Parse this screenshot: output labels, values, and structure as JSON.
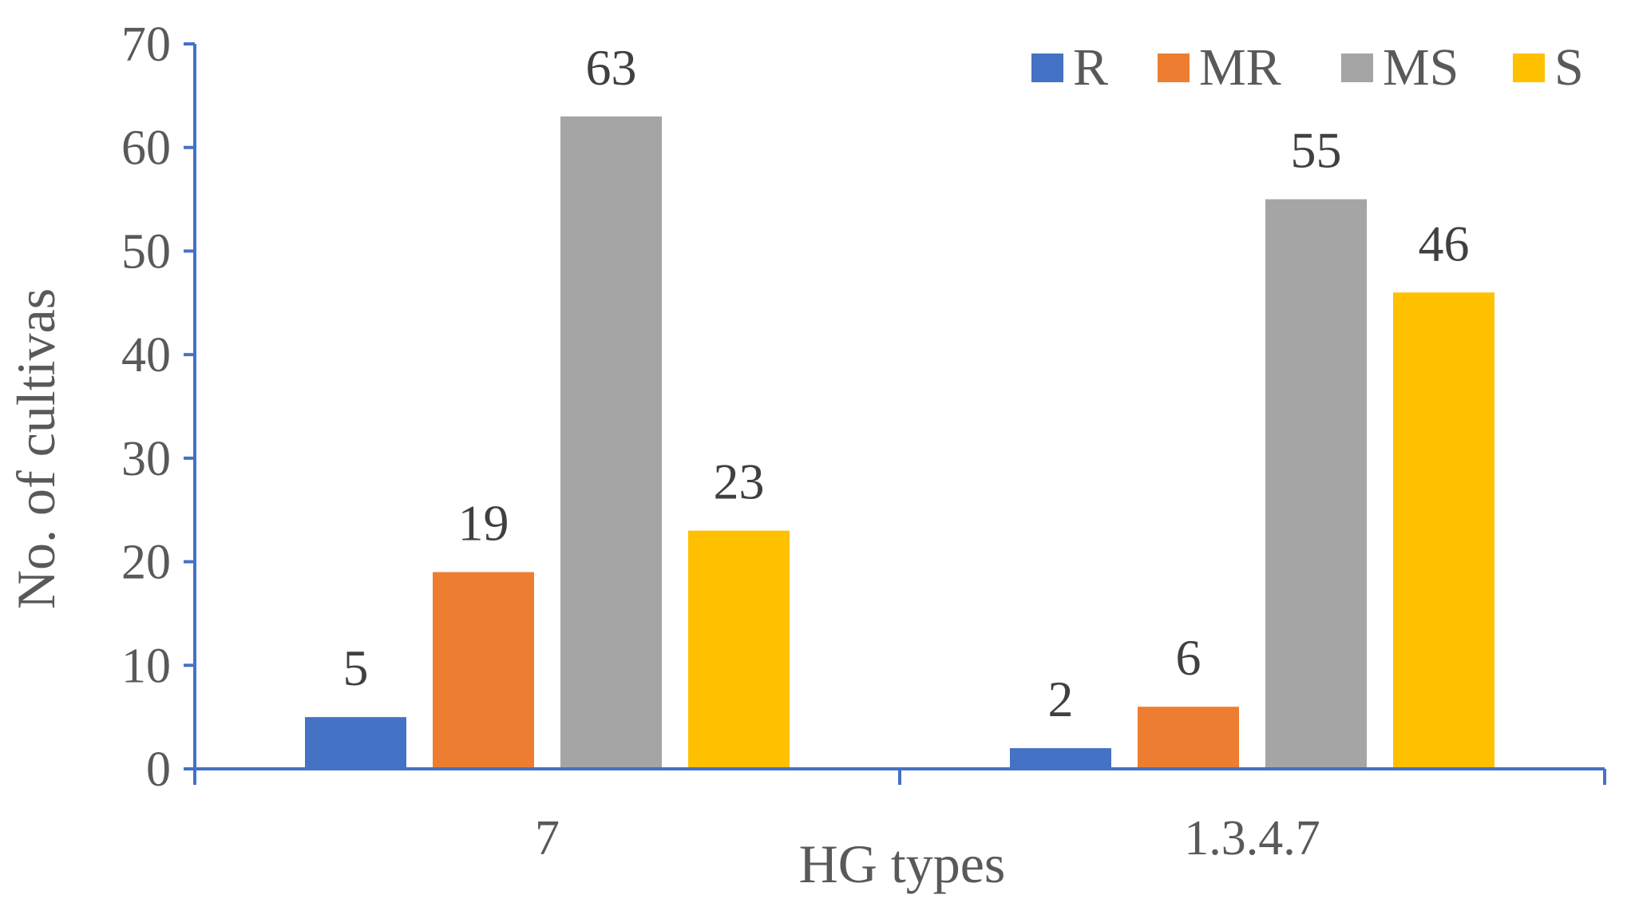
{
  "chart_data": {
    "type": "bar",
    "title": "",
    "xlabel": "HG types",
    "ylabel": "No. of cultivas",
    "ylim": [
      0,
      70
    ],
    "yticks": [
      0,
      10,
      20,
      30,
      40,
      50,
      60,
      70
    ],
    "categories": [
      "7",
      "1.3.4.7"
    ],
    "series": [
      {
        "name": "R",
        "values": [
          5,
          2
        ],
        "color": "#4472C4"
      },
      {
        "name": "MR",
        "values": [
          19,
          6
        ],
        "color": "#ED7D31"
      },
      {
        "name": "MS",
        "values": [
          63,
          55
        ],
        "color": "#A5A5A5"
      },
      {
        "name": "S",
        "values": [
          23,
          46
        ],
        "color": "#FFC000"
      }
    ],
    "data_labels": true,
    "grid": false,
    "legend": {
      "position": "top-right"
    },
    "axis_color": "#4472C4"
  }
}
